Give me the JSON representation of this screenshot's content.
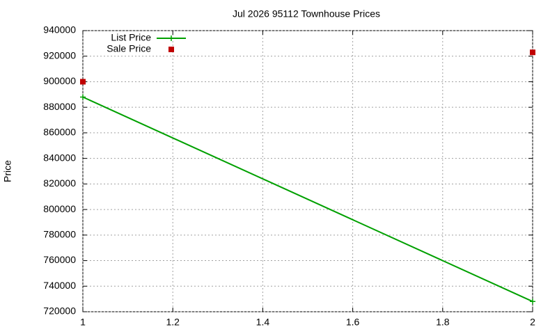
{
  "chart_data": {
    "type": "line",
    "title": "Jul 2026 95112 Townhouse Prices",
    "y_label": "Price",
    "x": [
      1,
      2
    ],
    "series": [
      {
        "name": "List Price",
        "color": "#00a000",
        "marker": "plus",
        "line": true,
        "values": [
          888000,
          728000
        ]
      },
      {
        "name": "Sale Price",
        "color": "#c00000",
        "marker": "square",
        "line": false,
        "values": [
          900000,
          923000
        ]
      }
    ],
    "xlim": [
      1,
      2
    ],
    "xticks": [
      1,
      {
        "value": 1.2,
        "label": "1.2"
      },
      {
        "value": 1.4,
        "label": "1.4"
      },
      {
        "value": 1.6,
        "label": "1.6"
      },
      {
        "value": 1.8,
        "label": "1.8"
      },
      2
    ],
    "ylim": [
      720000,
      940000
    ],
    "yticks": [
      720000,
      740000,
      760000,
      780000,
      800000,
      820000,
      840000,
      860000,
      880000,
      900000,
      920000,
      940000
    ],
    "grid": true,
    "legend": "top-left"
  }
}
